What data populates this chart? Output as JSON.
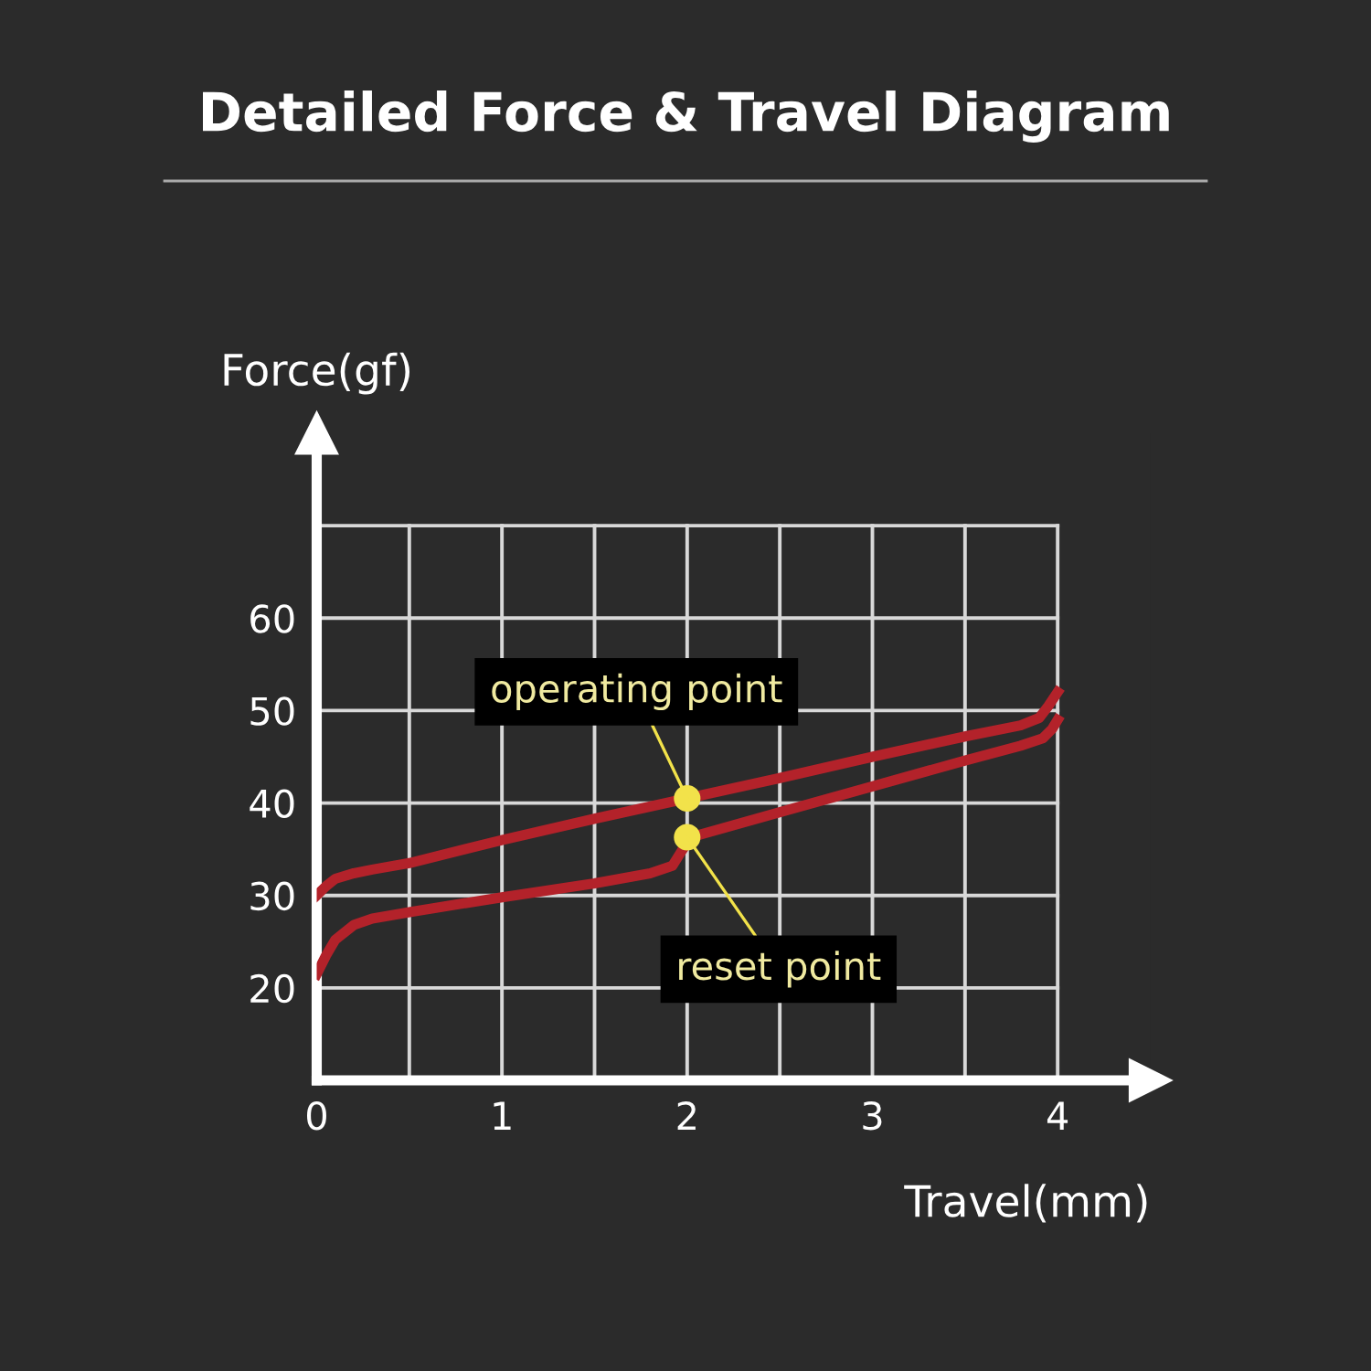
{
  "chart_data": {
    "type": "line",
    "title": "Detailed Force & Travel Diagram",
    "xlabel": "Travel(mm)",
    "ylabel": "Force(gf)",
    "xlim": [
      0,
      4.5
    ],
    "ylim": [
      10,
      80
    ],
    "xticks": [
      0,
      {
        "value": 0.5,
        "label": null
      },
      1,
      {
        "value": 1.5,
        "label": null
      },
      2,
      {
        "value": 2.5,
        "label": null
      },
      3,
      {
        "value": 3.5,
        "label": null
      },
      4
    ],
    "yticks": [
      {
        "value": 10,
        "label": null
      },
      20,
      30,
      40,
      50,
      60,
      {
        "value": 70,
        "label": null
      }
    ],
    "grid": true,
    "series": [
      {
        "color": "#b3222a",
        "x": [
          0,
          0.05,
          0.1,
          0.2,
          0.3,
          0.5,
          1,
          1.5,
          2,
          2.5,
          3,
          3.5,
          3.8,
          3.9,
          3.95,
          4
        ],
        "values": [
          30,
          31,
          31.8,
          32.4,
          32.8,
          33.5,
          36,
          38.3,
          40.5,
          42.7,
          45,
          47.2,
          48.4,
          49.2,
          50.5,
          52
        ]
      },
      {
        "color": "#b3222a",
        "x": [
          0,
          0.05,
          0.1,
          0.2,
          0.3,
          0.5,
          1,
          1.5,
          1.8,
          1.92,
          1.97,
          2.02,
          2.5,
          3,
          3.5,
          3.8,
          3.92,
          3.97,
          4
        ],
        "values": [
          21.5,
          23.5,
          25.2,
          26.8,
          27.5,
          28.2,
          29.8,
          31.3,
          32.4,
          33.2,
          34.8,
          36.3,
          39,
          41.8,
          44.6,
          46.2,
          47,
          48,
          49
        ]
      },
      {
        "type": "scatter",
        "color": "#f2e24a",
        "marker": "circle",
        "x": [
          2,
          2
        ],
        "values": [
          40.5,
          36.3
        ]
      }
    ],
    "annotations": [
      {
        "text": "operating point",
        "x": 2,
        "y": 40.5
      },
      {
        "text": "reset point",
        "x": 2,
        "y": 36.3
      }
    ]
  }
}
